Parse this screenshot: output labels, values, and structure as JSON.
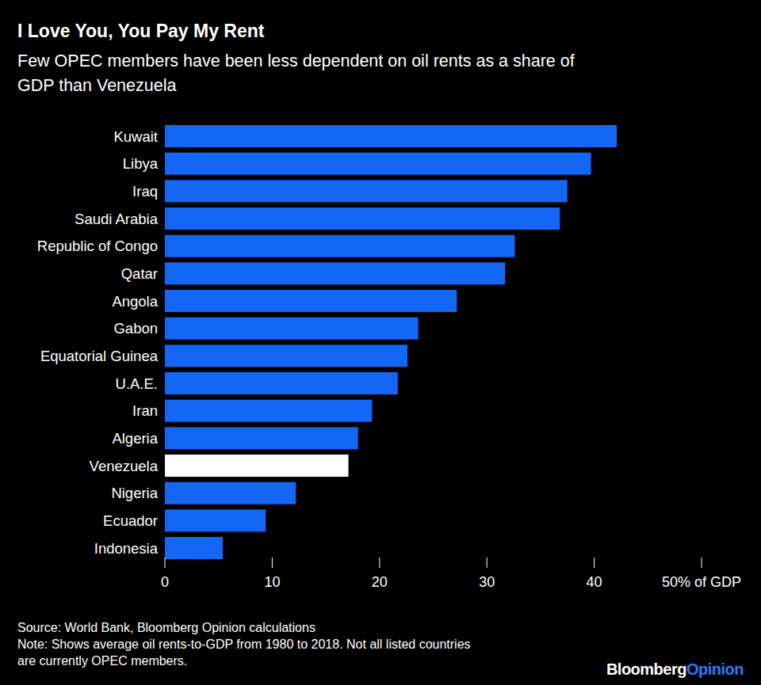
{
  "chart_data": {
    "type": "bar",
    "orientation": "horizontal",
    "title": "I Love You, You Pay My Rent",
    "subtitle": [
      "Few OPEC members have been less dependent on oil rents as a share of",
      "GDP than Venezuela"
    ],
    "categories": [
      "Kuwait",
      "Libya",
      "Iraq",
      "Saudi Arabia",
      "Republic of Congo",
      "Qatar",
      "Angola",
      "Gabon",
      "Equatorial Guinea",
      "U.A.E.",
      "Iran",
      "Algeria",
      "Venezuela",
      "Nigeria",
      "Ecuador",
      "Indonesia"
    ],
    "values": [
      42.1,
      39.7,
      37.5,
      36.8,
      32.6,
      31.7,
      27.2,
      23.6,
      22.6,
      21.7,
      19.3,
      18.0,
      17.1,
      12.2,
      9.4,
      5.4
    ],
    "colors": [
      "#1466f5",
      "#1466f5",
      "#1466f5",
      "#1466f5",
      "#1466f5",
      "#1466f5",
      "#1466f5",
      "#1466f5",
      "#1466f5",
      "#1466f5",
      "#1466f5",
      "#1466f5",
      "#ffffff",
      "#1466f5",
      "#1466f5",
      "#1466f5"
    ],
    "xlim": [
      0,
      50
    ],
    "xticks": [
      0,
      10,
      20,
      30,
      40,
      {
        "value": 50,
        "label": "50% of GDP"
      }
    ],
    "grid": false,
    "data_labels": false,
    "source": "Source: World Bank, Bloomberg Opinion calculations",
    "note": [
      "Note: Shows average oil rents-to-GDP from 1980 to 2018. Not all listed countries",
      "are currently OPEC members."
    ],
    "brand": [
      "Bloomberg",
      "Opinion"
    ]
  }
}
